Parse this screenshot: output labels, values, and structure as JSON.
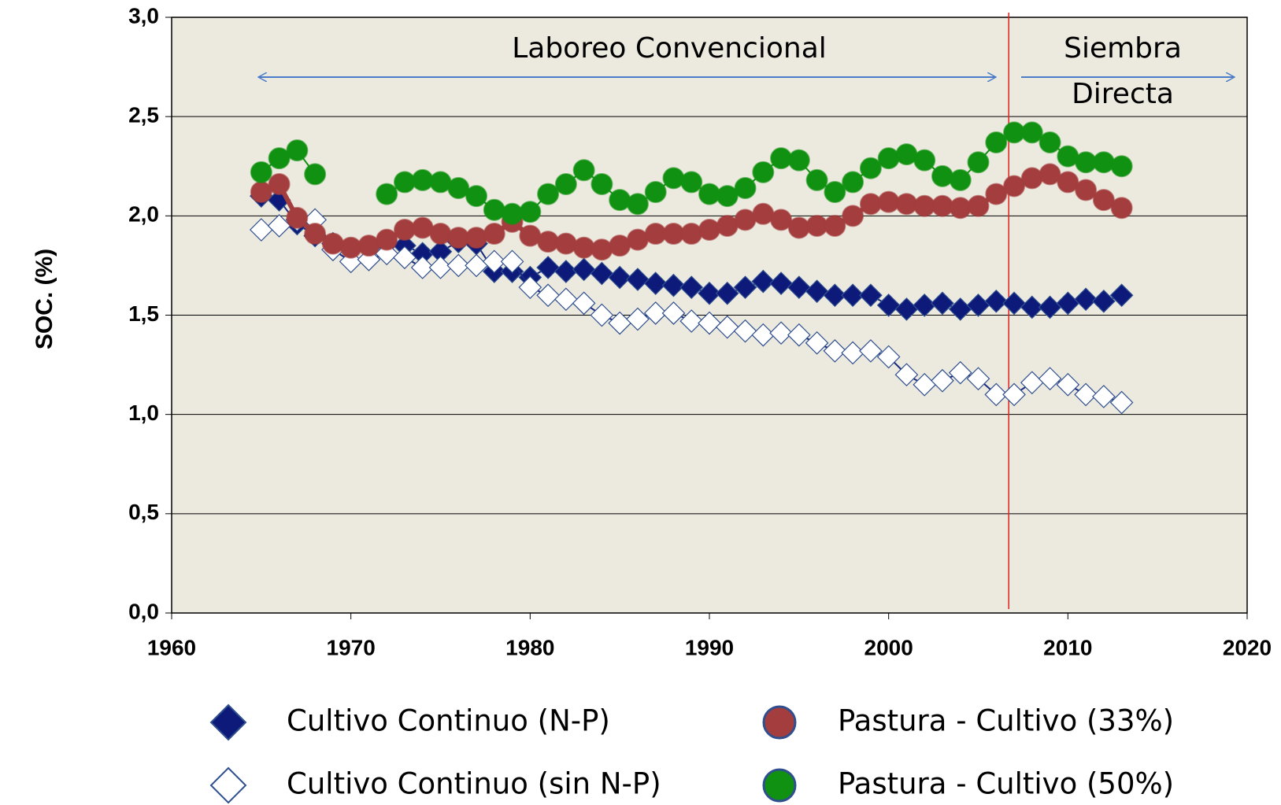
{
  "chart_data": {
    "type": "line",
    "y_label": "SOC. (%)",
    "x": [
      1965,
      1966,
      1967,
      1968,
      1969,
      1970,
      1971,
      1972,
      1973,
      1974,
      1975,
      1976,
      1977,
      1978,
      1979,
      1980,
      1981,
      1982,
      1983,
      1984,
      1985,
      1986,
      1987,
      1988,
      1989,
      1990,
      1991,
      1992,
      1993,
      1994,
      1995,
      1996,
      1997,
      1998,
      1999,
      2000,
      2001,
      2002,
      2003,
      2004,
      2005,
      2006,
      2007,
      2008,
      2009,
      2010,
      2011,
      2012,
      2013
    ],
    "series": [
      {
        "name": "Cultivo Continuo (N-P)",
        "color": "#0d1a7a",
        "marker": "diamond",
        "values": [
          2.1,
          2.08,
          1.96,
          1.9,
          1.86,
          1.83,
          1.84,
          1.86,
          1.85,
          1.81,
          1.82,
          1.87,
          1.86,
          1.72,
          1.72,
          1.69,
          1.74,
          1.72,
          1.73,
          1.71,
          1.69,
          1.68,
          1.66,
          1.65,
          1.64,
          1.61,
          1.61,
          1.64,
          1.67,
          1.66,
          1.64,
          1.62,
          1.6,
          1.6,
          1.6,
          1.55,
          1.53,
          1.55,
          1.56,
          1.53,
          1.55,
          1.57,
          1.56,
          1.54,
          1.54,
          1.56,
          1.58,
          1.57,
          1.6
        ]
      },
      {
        "name": "Cultivo Continuo (sin N-P)",
        "color": "#ffffff",
        "marker": "diamond",
        "values": [
          1.93,
          1.95,
          1.98,
          1.98,
          1.83,
          1.77,
          1.78,
          1.81,
          1.79,
          1.74,
          1.74,
          1.75,
          1.75,
          1.77,
          1.77,
          1.64,
          1.6,
          1.58,
          1.56,
          1.5,
          1.46,
          1.48,
          1.51,
          1.51,
          1.47,
          1.46,
          1.44,
          1.42,
          1.4,
          1.41,
          1.4,
          1.36,
          1.32,
          1.31,
          1.32,
          1.29,
          1.2,
          1.15,
          1.17,
          1.21,
          1.18,
          1.1,
          1.1,
          1.16,
          1.18,
          1.15,
          1.1,
          1.09,
          1.06
        ]
      },
      {
        "name": "Pastura - Cultivo (33%)",
        "color": "#a43d3d",
        "marker": "circle",
        "values": [
          2.12,
          2.16,
          1.99,
          1.91,
          1.86,
          1.84,
          1.85,
          1.88,
          1.93,
          1.94,
          1.91,
          1.89,
          1.89,
          1.91,
          1.97,
          1.9,
          1.87,
          1.86,
          1.84,
          1.83,
          1.85,
          1.88,
          1.91,
          1.91,
          1.91,
          1.93,
          1.95,
          1.98,
          2.01,
          1.98,
          1.94,
          1.95,
          1.95,
          2.0,
          2.06,
          2.07,
          2.06,
          2.05,
          2.05,
          2.04,
          2.05,
          2.11,
          2.15,
          2.19,
          2.21,
          2.17,
          2.13,
          2.08,
          2.04
        ]
      },
      {
        "name": "Pastura - Cultivo (50%)",
        "color": "#119111",
        "marker": "circle",
        "values": [
          2.22,
          2.29,
          2.33,
          2.21,
          null,
          null,
          null,
          2.11,
          2.17,
          2.18,
          2.17,
          2.14,
          2.1,
          2.03,
          2.01,
          2.02,
          2.11,
          2.16,
          2.23,
          2.16,
          2.08,
          2.06,
          2.12,
          2.19,
          2.17,
          2.11,
          2.1,
          2.14,
          2.22,
          2.29,
          2.28,
          2.18,
          2.12,
          2.17,
          2.24,
          2.29,
          2.31,
          2.28,
          2.2,
          2.18,
          2.27,
          2.37,
          2.42,
          2.42,
          2.37,
          2.3,
          2.27,
          2.27,
          2.25
        ]
      }
    ],
    "xlim": [
      1960,
      2020
    ],
    "xticks": [
      1960,
      1970,
      1980,
      1990,
      2000,
      2010,
      2020
    ],
    "ylim": [
      0,
      3
    ],
    "yticks": [
      {
        "value": 0,
        "label": "0,0"
      },
      {
        "value": 0.5,
        "label": "0,5"
      },
      {
        "value": 1,
        "label": "1,0"
      },
      {
        "value": 1.5,
        "label": "1,5"
      },
      {
        "value": 2,
        "label": "2,0"
      },
      {
        "value": 2.5,
        "label": "2,5"
      },
      {
        "value": 3,
        "label": "3,0"
      }
    ],
    "grid": true,
    "divider_x": 2006.7,
    "annotations": [
      {
        "lines": [
          "Laboreo Convencional"
        ]
      },
      {
        "lines": [
          "Siembra",
          "Directa"
        ]
      }
    ]
  }
}
